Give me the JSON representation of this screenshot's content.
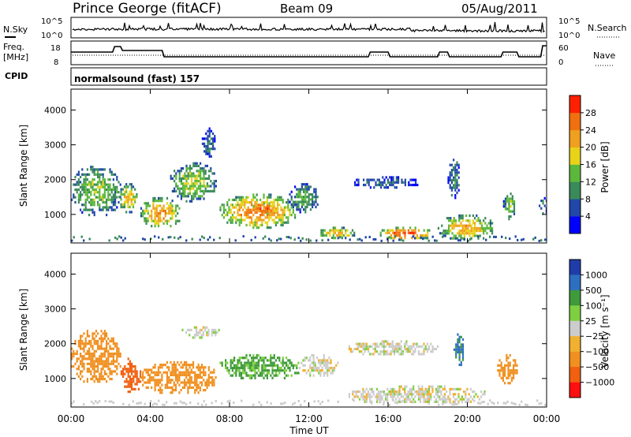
{
  "header": {
    "station": "Prince George (fitACF)",
    "beam": "Beam 09",
    "date": "05/Aug/2011"
  },
  "strip": {
    "nsky_label": "N.Sky",
    "nsearch_label": "N.Search",
    "noise_ticks_left": [
      "10^5",
      "10^0"
    ],
    "noise_ticks_right": [
      "10^5",
      "10^0"
    ],
    "freq_label_1": "Freq.",
    "freq_label_2": "[MHz]",
    "freq_ticks": [
      "18",
      "8"
    ],
    "nave_label": "Nave",
    "nave_ticks": [
      "60",
      "0"
    ],
    "cpid_label": "CPID",
    "cpid_text": "normalsound (fast) 157"
  },
  "colors": {
    "power": [
      "#0000ff",
      "#2147a8",
      "#3a8a5a",
      "#5cb83a",
      "#e8d21a",
      "#f0a020",
      "#f07010",
      "#ff2000"
    ],
    "velocity": [
      "#1f3da8",
      "#2d6fc0",
      "#3f9a3a",
      "#7fd040",
      "#cccccc",
      "#f0b030",
      "#f09020",
      "#f06010",
      "#ff1010"
    ]
  },
  "chart_data": [
    {
      "type": "heatmap",
      "panel": "power",
      "xlabel": "Time UT",
      "ylabel": "Slant Range [km]",
      "x_ticks": [
        "00:00",
        "04:00",
        "08:00",
        "12:00",
        "16:00",
        "20:00",
        "00:00"
      ],
      "y_ticks": [
        "1000",
        "2000",
        "3000",
        "4000"
      ],
      "xlim_hours": [
        0,
        24
      ],
      "ylim_km": [
        180,
        4600
      ],
      "colorbar_label": "Power [dB]",
      "colorbar_ticks": [
        "4",
        "8",
        "12",
        "16",
        "20",
        "24",
        "28"
      ],
      "colorbar_range": [
        0,
        30
      ],
      "echo_regions": [
        {
          "t0": 0.0,
          "t1": 2.5,
          "r0": 1000,
          "r1": 2400,
          "level": 14
        },
        {
          "t0": 2.4,
          "t1": 3.3,
          "r0": 1100,
          "r1": 1900,
          "level": 19
        },
        {
          "t0": 3.5,
          "t1": 5.5,
          "r0": 650,
          "r1": 1500,
          "level": 22
        },
        {
          "t0": 5.0,
          "t1": 7.3,
          "r0": 1400,
          "r1": 2500,
          "level": 15
        },
        {
          "t0": 6.6,
          "t1": 7.3,
          "r0": 2700,
          "r1": 3500,
          "level": 8
        },
        {
          "t0": 7.5,
          "t1": 11.3,
          "r0": 650,
          "r1": 1600,
          "level": 23
        },
        {
          "t0": 9.0,
          "t1": 10.5,
          "r0": 1050,
          "r1": 1350,
          "level": 28
        },
        {
          "t0": 11.0,
          "t1": 12.5,
          "r0": 1100,
          "r1": 1900,
          "level": 12
        },
        {
          "t0": 12.5,
          "t1": 14.3,
          "r0": 350,
          "r1": 650,
          "level": 20
        },
        {
          "t0": 14.2,
          "t1": 17.5,
          "r0": 1800,
          "r1": 2100,
          "level": 7
        },
        {
          "t0": 15.5,
          "t1": 18.2,
          "r0": 300,
          "r1": 650,
          "level": 27
        },
        {
          "t0": 18.5,
          "t1": 21.3,
          "r0": 300,
          "r1": 1000,
          "level": 20
        },
        {
          "t0": 19.0,
          "t1": 19.6,
          "r0": 1500,
          "r1": 2600,
          "level": 10
        },
        {
          "t0": 21.8,
          "t1": 22.4,
          "r0": 900,
          "r1": 1700,
          "level": 14
        },
        {
          "t0": 23.6,
          "t1": 24.0,
          "r0": 1000,
          "r1": 1500,
          "level": 9
        }
      ]
    },
    {
      "type": "heatmap",
      "panel": "velocity",
      "xlabel": "Time UT",
      "ylabel": "Slant Range [km]",
      "x_ticks": [
        "00:00",
        "04:00",
        "08:00",
        "12:00",
        "16:00",
        "20:00",
        "00:00"
      ],
      "y_ticks": [
        "1000",
        "2000",
        "3000",
        "4000"
      ],
      "xlim_hours": [
        0,
        24
      ],
      "ylim_km": [
        180,
        4600
      ],
      "colorbar_label": "Velocity [m s⁻¹]",
      "colorbar_ticks": [
        "1000",
        "500",
        "100",
        "25",
        "−25",
        "−100",
        "−500",
        "−1000"
      ],
      "echo_regions": [
        {
          "t0": 0.0,
          "t1": 2.5,
          "r0": 900,
          "r1": 2400,
          "vel": -200
        },
        {
          "t0": 2.5,
          "t1": 3.5,
          "r0": 600,
          "r1": 1600,
          "vel": -500
        },
        {
          "t0": 3.5,
          "t1": 7.3,
          "r0": 600,
          "r1": 1500,
          "vel": -150
        },
        {
          "t0": 5.5,
          "t1": 7.5,
          "r0": 2200,
          "r1": 2500,
          "vel": 0
        },
        {
          "t0": 7.5,
          "t1": 11.5,
          "r0": 1000,
          "r1": 1700,
          "vel": 80
        },
        {
          "t0": 11.5,
          "t1": 13.5,
          "r0": 1100,
          "r1": 1700,
          "vel": 0
        },
        {
          "t0": 14.0,
          "t1": 18.5,
          "r0": 1700,
          "r1": 2100,
          "vel": 0
        },
        {
          "t0": 14.0,
          "t1": 21.0,
          "r0": 300,
          "r1": 800,
          "vel": 0
        },
        {
          "t0": 19.3,
          "t1": 19.8,
          "r0": 1400,
          "r1": 2300,
          "vel": 400
        },
        {
          "t0": 21.5,
          "t1": 22.5,
          "r0": 900,
          "r1": 1700,
          "vel": -150
        }
      ]
    }
  ]
}
